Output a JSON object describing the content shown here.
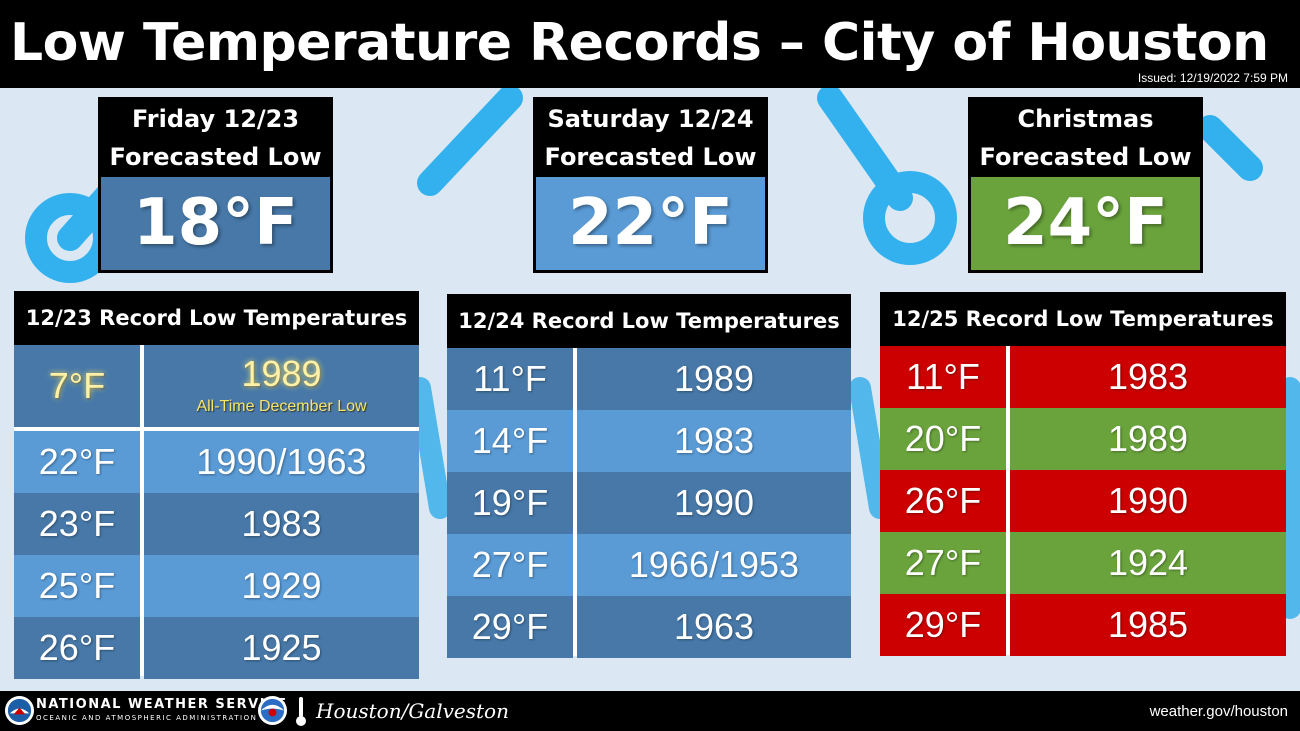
{
  "header": {
    "title": "Low Temperature Records – City of Houston",
    "issued": "Issued: 12/19/2022  7:59 PM"
  },
  "forecasts": [
    {
      "line1": "Friday 12/23",
      "line2": "Forecasted Low",
      "value": "18°F",
      "color": "#4778a8"
    },
    {
      "line1": "Saturday 12/24",
      "line2": "Forecasted Low",
      "value": "22°F",
      "color": "#5a9bd6"
    },
    {
      "line1": "Christmas",
      "line2": "Forecasted Low",
      "value": "24°F",
      "color": "#6aa33c"
    }
  ],
  "records": [
    {
      "title": "12/23 Record Low Temperatures",
      "rows": [
        {
          "temp": "7°F",
          "year": "1989",
          "note": "All-Time December Low"
        },
        {
          "temp": "22°F",
          "year": "1990/1963"
        },
        {
          "temp": "23°F",
          "year": "1983"
        },
        {
          "temp": "25°F",
          "year": "1929"
        },
        {
          "temp": "26°F",
          "year": "1925"
        }
      ]
    },
    {
      "title": "12/24 Record Low Temperatures",
      "rows": [
        {
          "temp": "11°F",
          "year": "1989"
        },
        {
          "temp": "14°F",
          "year": "1983"
        },
        {
          "temp": "19°F",
          "year": "1990"
        },
        {
          "temp": "27°F",
          "year": "1966/1953"
        },
        {
          "temp": "29°F",
          "year": "1963"
        }
      ]
    },
    {
      "title": "12/25 Record Low Temperatures",
      "rows": [
        {
          "temp": "11°F",
          "year": "1983"
        },
        {
          "temp": "20°F",
          "year": "1989"
        },
        {
          "temp": "26°F",
          "year": "1990"
        },
        {
          "temp": "27°F",
          "year": "1924"
        },
        {
          "temp": "29°F",
          "year": "1985"
        }
      ]
    }
  ],
  "footer": {
    "agency": "NATIONAL WEATHER SERVICE",
    "agency_sub": "OCEANIC AND ATMOSPHERIC ADMINISTRATION",
    "office": "Houston/Galveston",
    "website": "weather.gov/houston"
  },
  "colors": {
    "header_bg": "#000000",
    "background": "#dbe8f4",
    "record_dark_blue": "#4778a8",
    "record_light_blue": "#5a9bd6",
    "record_red": "#cc0000",
    "record_green": "#6aa33c",
    "highlight_yellow": "#f5e66b"
  },
  "icons": [
    "thermometer-icon",
    "nws-logo-icon",
    "noaa-logo-icon"
  ]
}
